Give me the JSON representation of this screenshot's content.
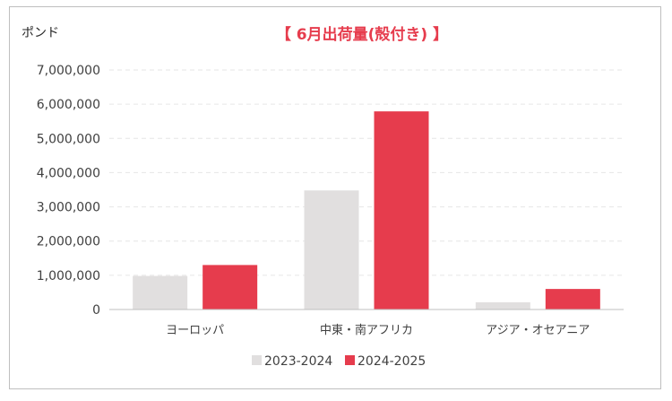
{
  "chart_data": {
    "type": "bar",
    "title": "【 6月出荷量(殻付き) 】",
    "unit_label": "ポンド",
    "categories": [
      "ヨーロッパ",
      "中東・南アフリカ",
      "アジア・オセアニア"
    ],
    "series": [
      {
        "name": "2023-2024",
        "color": "#e1dfdf",
        "values": [
          980000,
          3480000,
          210000
        ]
      },
      {
        "name": "2024-2025",
        "color": "#e63c4d",
        "values": [
          1300000,
          5790000,
          600000
        ]
      }
    ],
    "ylim": [
      0,
      7000000
    ],
    "yticks": [
      "0",
      "1,000,000",
      "2,000,000",
      "3,000,000",
      "4,000,000",
      "5,000,000",
      "6,000,000",
      "7,000,000"
    ],
    "ytick_values": [
      0,
      1000000,
      2000000,
      3000000,
      4000000,
      5000000,
      6000000,
      7000000
    ],
    "grid": "horizontal-dashed",
    "legend": "bottom-center",
    "title_color": "#e63c4d"
  }
}
